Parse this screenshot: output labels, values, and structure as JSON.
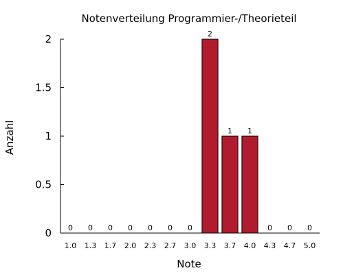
{
  "chart_data": {
    "type": "bar",
    "title": "Notenverteilung Programmier-/Theorieteil",
    "xlabel": "Note",
    "ylabel": "Anzahl",
    "categories": [
      "1.0",
      "1.3",
      "1.7",
      "2.0",
      "2.3",
      "2.7",
      "3.0",
      "3.3",
      "3.7",
      "4.0",
      "4.3",
      "4.7",
      "5.0"
    ],
    "values": [
      0,
      0,
      0,
      0,
      0,
      0,
      0,
      2,
      1,
      1,
      0,
      0,
      0
    ],
    "ylim": [
      0,
      2
    ],
    "yticks": [
      "0",
      "0.5",
      "1",
      "1.5",
      "2"
    ],
    "bar_color": "#b01c2e",
    "grid": false,
    "data_labels": true
  }
}
